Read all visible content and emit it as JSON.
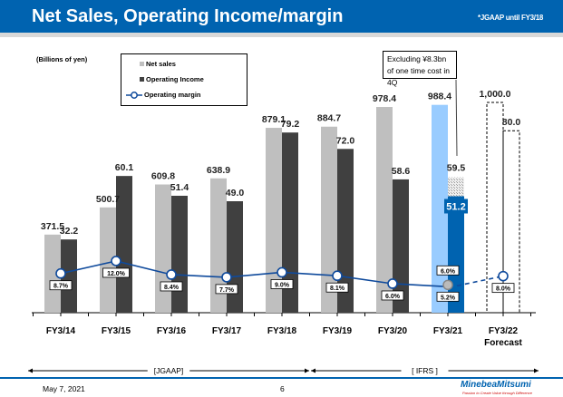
{
  "header": {
    "title": "Net Sales, Operating Income/margin",
    "note": "*JGAAP until FY3/18"
  },
  "unit_label": "(Billions of yen)",
  "callout": "Excluding ¥8.3bn of one time cost in 4Q",
  "colors": {
    "net_sales": "#bfbfbf",
    "operating_income": "#404040",
    "margin_line": "#0f4a9c",
    "fy21_net_sales": "#99ccff",
    "fy21_operating_income": "#0063b0",
    "header": "#0063b0"
  },
  "chart_data": {
    "type": "bar",
    "categories": [
      "FY3/14",
      "FY3/15",
      "FY3/16",
      "FY3/17",
      "FY3/18",
      "FY3/19",
      "FY3/20",
      "FY3/21",
      "FY3/22"
    ],
    "category_sublabels": [
      "",
      "",
      "",
      "",
      "",
      "",
      "",
      "",
      "Forecast"
    ],
    "series": [
      {
        "name": "Net sales",
        "type": "bar",
        "values": [
          371.5,
          500.7,
          609.8,
          638.9,
          879.1,
          884.7,
          978.4,
          988.4,
          1000.0
        ],
        "labels": [
          "371.5",
          "500.7",
          "609.8",
          "638.9",
          "879.1",
          "884.7",
          "978.4",
          "988.4",
          "1,000.0"
        ]
      },
      {
        "name": "Operating Income",
        "type": "bar",
        "values": [
          32.2,
          60.1,
          51.4,
          49.0,
          79.2,
          72.0,
          58.6,
          51.2,
          80.0
        ],
        "labels": [
          "32.2",
          "60.1",
          "51.4",
          "49.0",
          "79.2",
          "72.0",
          "58.6",
          "51.2",
          "80.0"
        ]
      },
      {
        "name": "Operating margin",
        "type": "line",
        "unit": "%",
        "values": [
          8.7,
          12.0,
          8.4,
          7.7,
          9.0,
          8.1,
          6.0,
          5.2,
          8.0
        ],
        "labels": [
          "8.7%",
          "12.0%",
          "8.4%",
          "7.7%",
          "9.0%",
          "8.1%",
          "6.0%",
          "5.2%",
          "8.0%"
        ]
      }
    ],
    "fy21_excluding_one_time": {
      "operating_income": 59.5,
      "operating_income_label": "59.5",
      "margin": 6.0,
      "margin_label": "6.0%"
    },
    "forecast_index": 8
  },
  "periods": [
    {
      "label": "[JGAAP]"
    },
    {
      "label": "[ IFRS ]"
    }
  ],
  "footer": {
    "date": "May 7, 2021",
    "page": "6",
    "logo": "MinebeaMitsumi",
    "tagline": "Passion to Create Value through Difference"
  }
}
